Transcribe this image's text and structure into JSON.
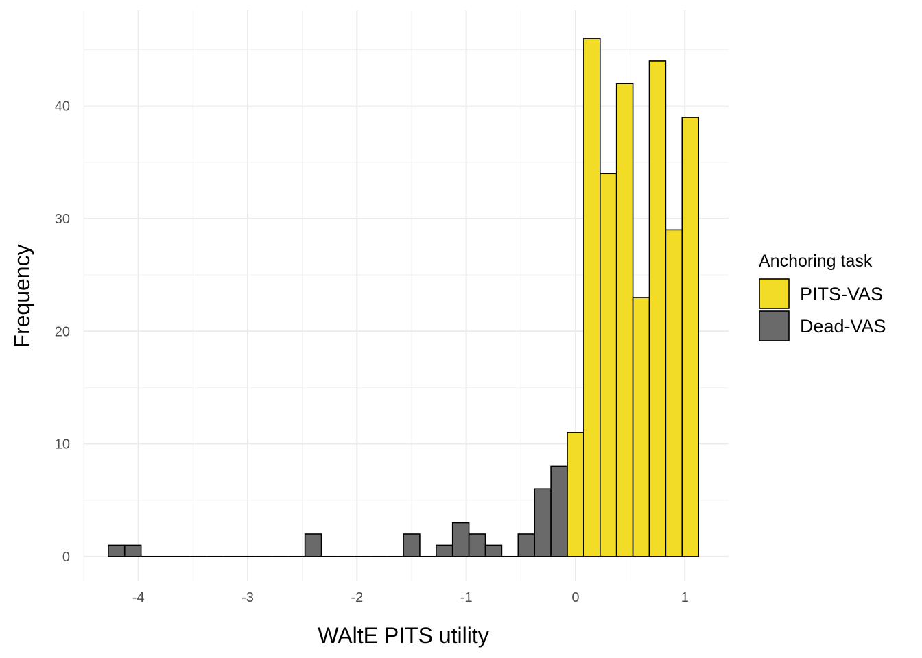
{
  "chart_data": {
    "type": "bar",
    "xlabel": "WAltE PITS utility",
    "ylabel": "Frequency",
    "xlim": [
      -4.5,
      1.4
    ],
    "ylim": [
      -2.2,
      48.5
    ],
    "x_ticks": [
      -4,
      -3,
      -2,
      -1,
      0,
      1
    ],
    "x_tick_labels": [
      "-4",
      "-3",
      "-2",
      "-1",
      "0",
      "1"
    ],
    "y_ticks": [
      0,
      10,
      20,
      30,
      40
    ],
    "y_tick_labels": [
      "0",
      "10",
      "20",
      "30",
      "40"
    ],
    "grid": true,
    "bin_width": 0.15,
    "legend": {
      "title": "Anchoring task",
      "position": "right",
      "entries": [
        {
          "label": "PITS-VAS",
          "color": "#f2dc25"
        },
        {
          "label": "Dead-VAS",
          "color": "#6a6a6a"
        }
      ]
    },
    "series": [
      {
        "name": "PITS-VAS",
        "color": "#f2dc25",
        "bin_starts": [
          -0.075,
          0.075,
          0.225,
          0.375,
          0.525,
          0.675,
          0.825,
          0.975
        ],
        "values": [
          11,
          46,
          34,
          42,
          23,
          44,
          29,
          39
        ]
      },
      {
        "name": "Dead-VAS",
        "color": "#6a6a6a",
        "bin_starts": [
          -4.275,
          -4.125,
          -3.975,
          -3.825,
          -3.675,
          -3.525,
          -3.375,
          -3.225,
          -3.075,
          -2.925,
          -2.775,
          -2.625,
          -2.475,
          -2.325,
          -2.175,
          -2.025,
          -1.875,
          -1.725,
          -1.575,
          -1.425,
          -1.275,
          -1.125,
          -0.975,
          -0.825,
          -0.675,
          -0.525,
          -0.375,
          -0.225
        ],
        "values": [
          1,
          1,
          0,
          0,
          0,
          0,
          0,
          0,
          0,
          0,
          0,
          0,
          2,
          0,
          0,
          0,
          0,
          0,
          2,
          0,
          1,
          3,
          2,
          1,
          0,
          2,
          6,
          8
        ]
      }
    ]
  }
}
